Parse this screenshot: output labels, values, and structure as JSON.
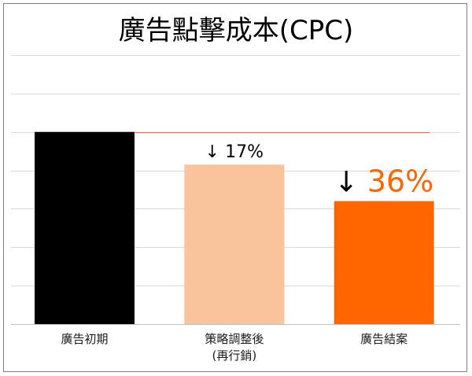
{
  "chart_data": {
    "type": "bar",
    "title": "廣告點擊成本(CPC)",
    "categories": [
      {
        "line1": "廣告初期",
        "line2": ""
      },
      {
        "line1": "策略調整後",
        "line2": "(再行銷)"
      },
      {
        "line1": "廣告結案",
        "line2": ""
      }
    ],
    "values": [
      100,
      83,
      64
    ],
    "ylim": [
      0,
      140
    ],
    "grid": true,
    "colors": [
      "#000000",
      "#f9c49b",
      "#ff6600"
    ],
    "annotations": [
      {
        "bar": 1,
        "arrow": "↓",
        "text": "17%",
        "color": "#000000"
      },
      {
        "bar": 2,
        "arrow": "↓",
        "text": "36%",
        "color": "#ff6600"
      }
    ],
    "reference_line": {
      "value": 100,
      "color": "#e8665a"
    }
  }
}
